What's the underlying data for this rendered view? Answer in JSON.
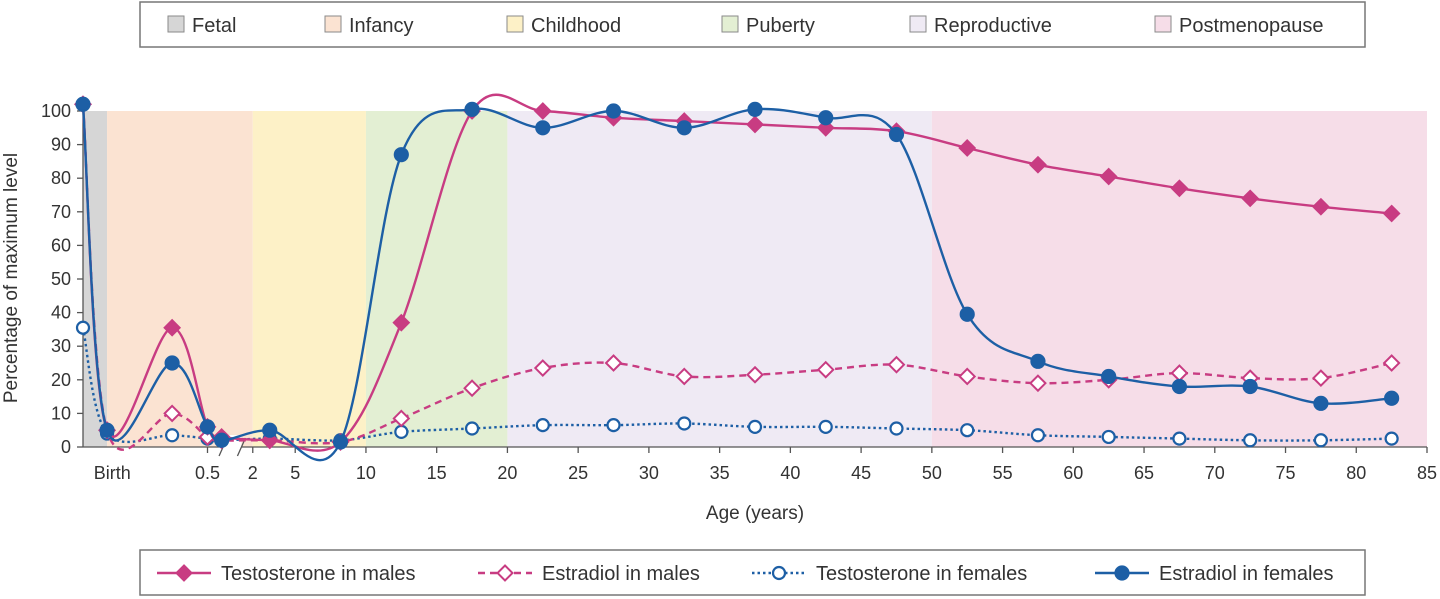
{
  "chart_data": {
    "type": "line",
    "title": "",
    "xlabel": "Age (years)",
    "ylabel": "Percentage of maximum level",
    "ylim": [
      0,
      100
    ],
    "yticks": [
      0,
      10,
      20,
      30,
      40,
      50,
      60,
      70,
      80,
      90,
      100
    ],
    "x_axis_note": "broken axis: birth to 0.5 years expanded, 0.5-2 years compressed",
    "xticks": [
      {
        "label": "Birth",
        "pos": 1.5
      },
      {
        "label": "0.5",
        "pos": 8.8
      },
      {
        "label": "2",
        "pos": 12
      },
      {
        "label": "5",
        "pos": 15
      },
      {
        "label": "10",
        "pos": 20
      },
      {
        "label": "15",
        "pos": 25
      },
      {
        "label": "20",
        "pos": 30
      },
      {
        "label": "25",
        "pos": 35
      },
      {
        "label": "30",
        "pos": 40
      },
      {
        "label": "35",
        "pos": 45
      },
      {
        "label": "40",
        "pos": 50
      },
      {
        "label": "45",
        "pos": 55
      },
      {
        "label": "50",
        "pos": 60
      },
      {
        "label": "55",
        "pos": 65
      },
      {
        "label": "60",
        "pos": 70
      },
      {
        "label": "65",
        "pos": 75
      },
      {
        "label": "70",
        "pos": 80
      },
      {
        "label": "75",
        "pos": 85
      },
      {
        "label": "80",
        "pos": 90
      },
      {
        "label": "85",
        "pos": 95
      }
    ],
    "phases": [
      {
        "name": "Fetal",
        "start": 0,
        "end": 1.7,
        "color": "#d6d6d6"
      },
      {
        "name": "Infancy",
        "start": 1.7,
        "end": 12,
        "color": "#fbe3d2"
      },
      {
        "name": "Childhood",
        "start": 12,
        "end": 20,
        "color": "#fdf1c7"
      },
      {
        "name": "Puberty",
        "start": 20,
        "end": 30,
        "color": "#e3efd3"
      },
      {
        "name": "Reproductive",
        "start": 30,
        "end": 60,
        "color": "#efeaf4"
      },
      {
        "name": "Postmenopause",
        "start": 60,
        "end": 95,
        "color": "#f6dde8"
      }
    ],
    "series": [
      {
        "name": "Testosterone in males",
        "color": "#c83c82",
        "style": "solid",
        "marker": "diamond-filled",
        "points": [
          [
            0,
            102
          ],
          [
            1.7,
            5
          ],
          [
            6.3,
            35.5
          ],
          [
            8.8,
            6
          ],
          [
            9.8,
            3
          ],
          [
            13.2,
            2
          ],
          [
            18.2,
            1.5
          ],
          [
            22.5,
            37
          ],
          [
            27.5,
            100
          ],
          [
            32.5,
            100
          ],
          [
            37.5,
            98
          ],
          [
            42.5,
            97
          ],
          [
            47.5,
            96
          ],
          [
            52.5,
            95
          ],
          [
            57.5,
            94
          ],
          [
            62.5,
            89
          ],
          [
            67.5,
            84
          ],
          [
            72.5,
            80.5
          ],
          [
            77.5,
            77
          ],
          [
            82.5,
            74
          ],
          [
            87.5,
            71.5
          ],
          [
            92.5,
            69.5
          ]
        ]
      },
      {
        "name": "Estradiol in males",
        "color": "#c83c82",
        "style": "dashed",
        "marker": "diamond-open",
        "points": [
          [
            0,
            102
          ],
          [
            1.7,
            5
          ],
          [
            6.3,
            10
          ],
          [
            8.8,
            3
          ],
          [
            9.8,
            2
          ],
          [
            13.2,
            2
          ],
          [
            18.2,
            1.5
          ],
          [
            22.5,
            8.5
          ],
          [
            27.5,
            17.5
          ],
          [
            32.5,
            23.5
          ],
          [
            37.5,
            25
          ],
          [
            42.5,
            21
          ],
          [
            47.5,
            21.5
          ],
          [
            52.5,
            23
          ],
          [
            57.5,
            24.5
          ],
          [
            62.5,
            21
          ],
          [
            67.5,
            19
          ],
          [
            72.5,
            20
          ],
          [
            77.5,
            22
          ],
          [
            82.5,
            20.5
          ],
          [
            87.5,
            20.5
          ],
          [
            92.5,
            25
          ]
        ]
      },
      {
        "name": "Testosterone in females",
        "color": "#1d5fa5",
        "style": "dotted",
        "marker": "circle-open",
        "points": [
          [
            0,
            35.5
          ],
          [
            1.7,
            4
          ],
          [
            6.3,
            3.5
          ],
          [
            8.8,
            2.5
          ],
          [
            9.8,
            2
          ],
          [
            13.2,
            2.5
          ],
          [
            18.2,
            2
          ],
          [
            22.5,
            4.5
          ],
          [
            27.5,
            5.5
          ],
          [
            32.5,
            6.5
          ],
          [
            37.5,
            6.5
          ],
          [
            42.5,
            7
          ],
          [
            47.5,
            6
          ],
          [
            52.5,
            6
          ],
          [
            57.5,
            5.5
          ],
          [
            62.5,
            5
          ],
          [
            67.5,
            3.5
          ],
          [
            72.5,
            3
          ],
          [
            77.5,
            2.5
          ],
          [
            82.5,
            2
          ],
          [
            87.5,
            2
          ],
          [
            92.5,
            2.5
          ]
        ]
      },
      {
        "name": "Estradiol in females",
        "color": "#1d5fa5",
        "style": "solid",
        "marker": "circle-filled",
        "points": [
          [
            0,
            102
          ],
          [
            1.7,
            5
          ],
          [
            6.3,
            25
          ],
          [
            8.8,
            6
          ],
          [
            9.8,
            2
          ],
          [
            13.2,
            5
          ],
          [
            18.2,
            1.5
          ],
          [
            22.5,
            87
          ],
          [
            27.5,
            100.5
          ],
          [
            32.5,
            95
          ],
          [
            37.5,
            100
          ],
          [
            42.5,
            95
          ],
          [
            47.5,
            100.5
          ],
          [
            52.5,
            98
          ],
          [
            57.5,
            93
          ],
          [
            62.5,
            39.5
          ],
          [
            67.5,
            25.5
          ],
          [
            72.5,
            21
          ],
          [
            77.5,
            18
          ],
          [
            82.5,
            18
          ],
          [
            87.5,
            13
          ],
          [
            92.5,
            14.5
          ]
        ]
      }
    ]
  }
}
